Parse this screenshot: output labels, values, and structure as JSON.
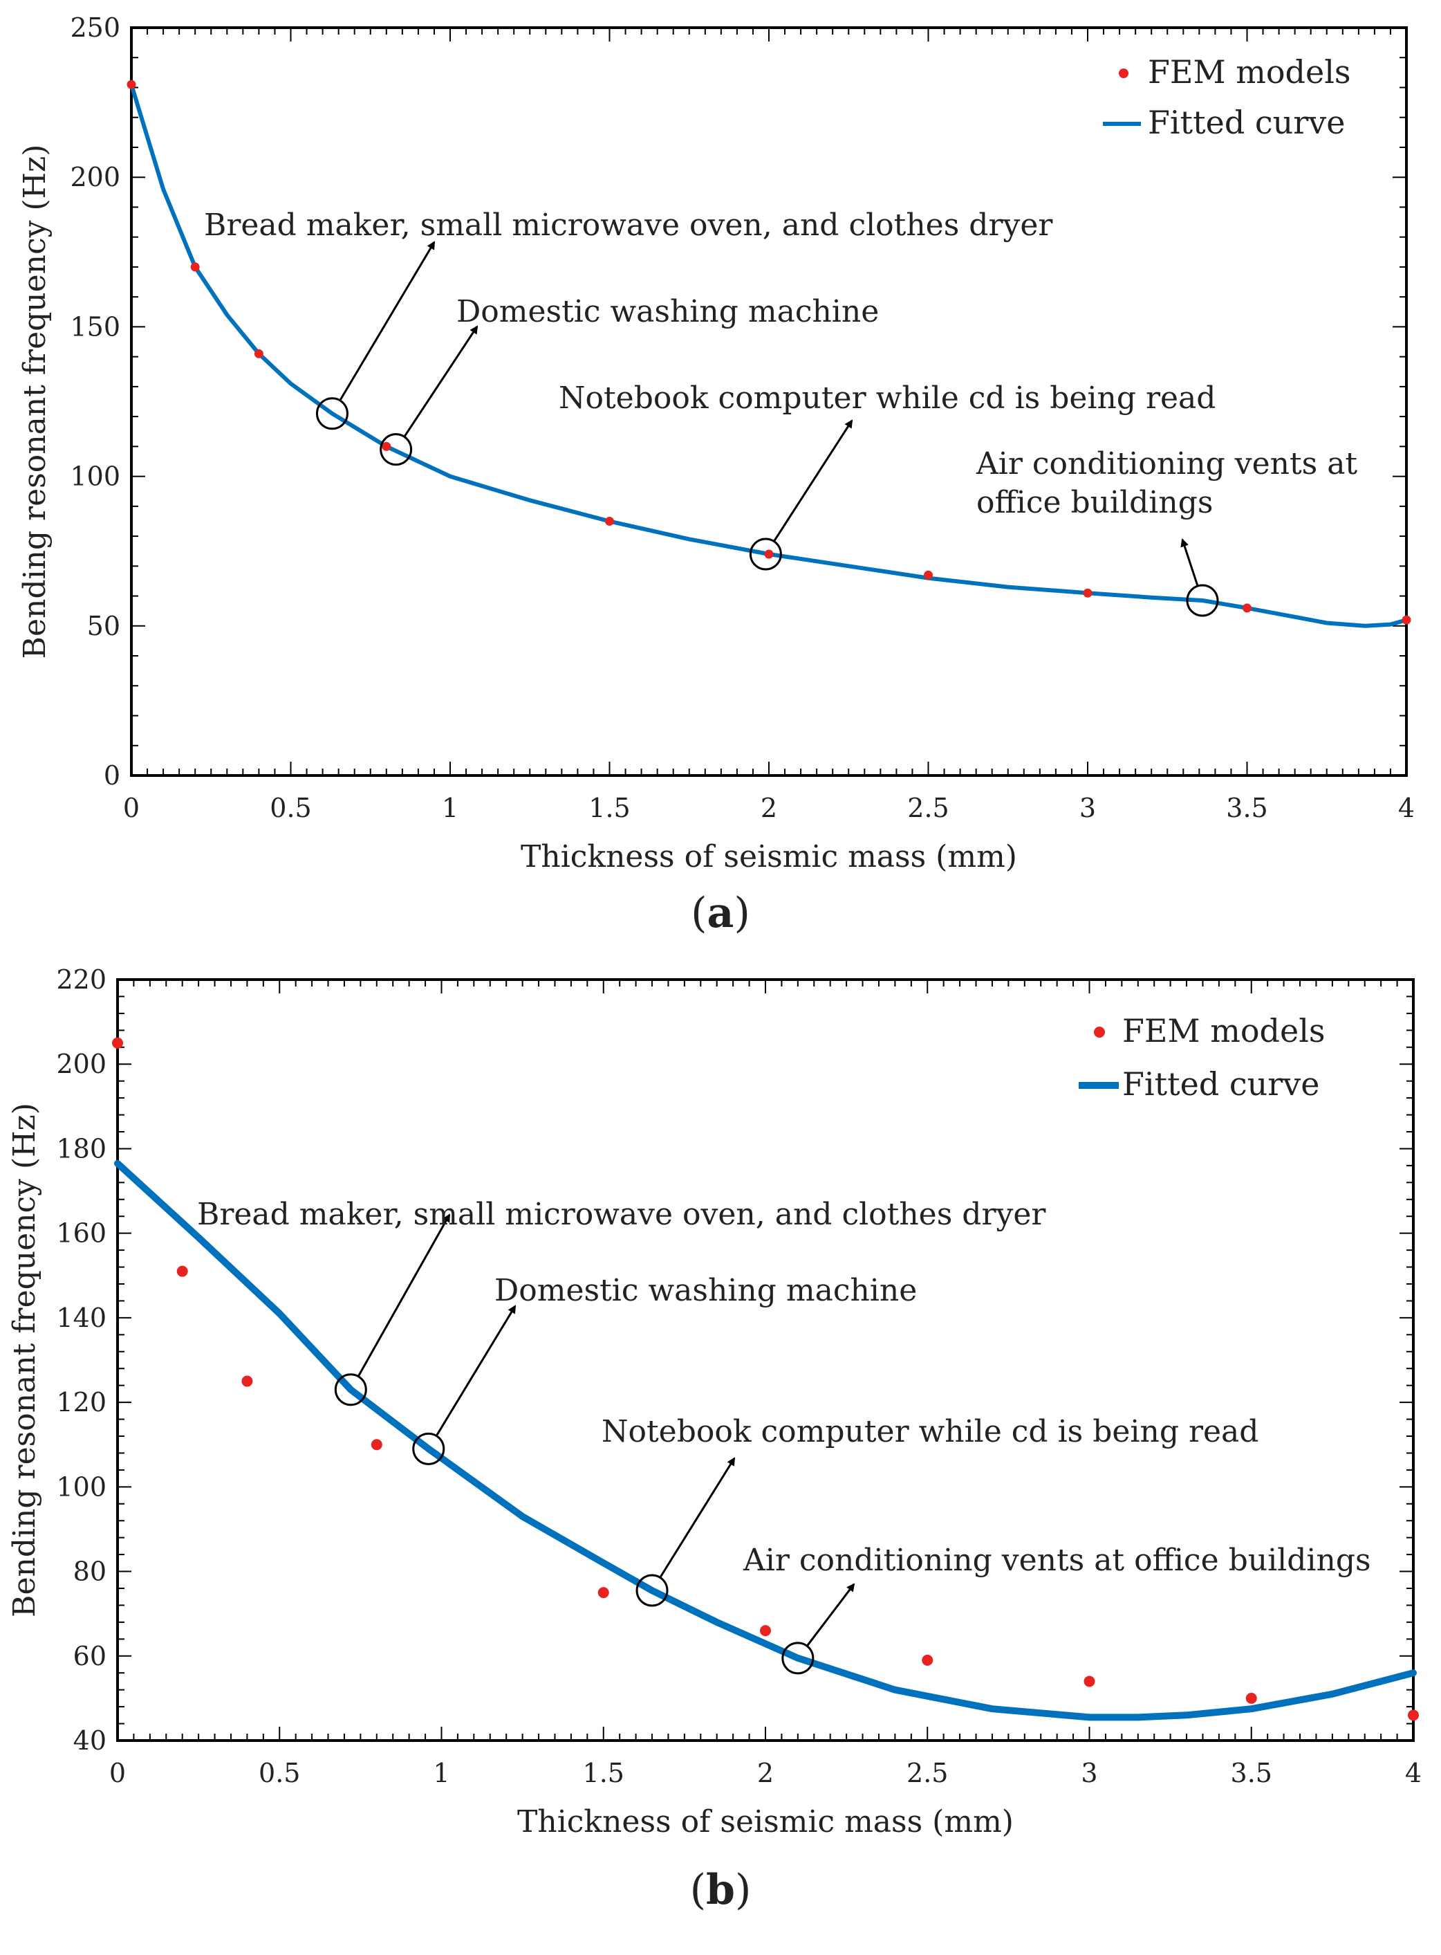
{
  "chart_data": [
    {
      "type": "line",
      "panel_label": "a",
      "xlabel": "Thickness of seismic mass (mm)",
      "ylabel": "Bending resonant frequency (Hz)",
      "xlim": [
        0,
        4
      ],
      "ylim": [
        0,
        250
      ],
      "x_ticks": [
        0,
        0.5,
        1,
        1.5,
        2,
        2.5,
        3,
        3.5,
        4
      ],
      "y_ticks": [
        0,
        50,
        100,
        150,
        200,
        250
      ],
      "legend": {
        "placement": "top-right",
        "entries": [
          "FEM models",
          "Fitted curve"
        ]
      },
      "series": [
        {
          "name": "FEM models",
          "style": "points",
          "color": "#e8231f",
          "x": [
            0,
            0.2,
            0.4,
            0.8,
            1.5,
            2,
            2.5,
            3,
            3.5,
            4
          ],
          "y": [
            231,
            170,
            141,
            110,
            85,
            74,
            67,
            61,
            56,
            52
          ]
        },
        {
          "name": "Fitted curve",
          "style": "line",
          "color": "#0072bd",
          "x": [
            0,
            0.1,
            0.2,
            0.3,
            0.4,
            0.5,
            0.63,
            0.8,
            1,
            1.25,
            1.5,
            1.75,
            2,
            2.25,
            2.5,
            2.75,
            3,
            3.2,
            3.36,
            3.5,
            3.65,
            3.75,
            3.87,
            3.95,
            4
          ],
          "y": [
            231,
            196,
            170,
            154,
            141,
            131,
            121,
            110,
            100,
            92,
            85,
            79,
            74,
            70,
            66,
            63,
            61,
            59.5,
            58.5,
            56,
            53,
            51,
            50,
            50.5,
            52
          ]
        }
      ],
      "annotations": [
        {
          "text": "Bread maker, small microwave oven, and clothes dryer",
          "x": 0.63,
          "y": 121
        },
        {
          "text": "Domestic washing machine",
          "x": 0.83,
          "y": 109
        },
        {
          "text": "Notebook computer while cd is being read",
          "x": 1.99,
          "y": 74
        },
        {
          "text": "Air conditioning vents at office buildings",
          "lines": [
            "Air conditioning vents at",
            "office buildings"
          ],
          "x": 3.36,
          "y": 58.5
        }
      ]
    },
    {
      "type": "line",
      "panel_label": "b",
      "xlabel": "Thickness of seismic mass (mm)",
      "ylabel": "Bending resonant frequency (Hz)",
      "xlim": [
        0,
        4
      ],
      "ylim": [
        40,
        220
      ],
      "x_ticks": [
        0,
        0.5,
        1,
        1.5,
        2,
        2.5,
        3,
        3.5,
        4
      ],
      "y_ticks": [
        40,
        60,
        80,
        100,
        120,
        140,
        160,
        180,
        200,
        220
      ],
      "legend": {
        "placement": "top-right",
        "entries": [
          "FEM models",
          "Fitted curve"
        ]
      },
      "series": [
        {
          "name": "FEM models",
          "style": "points",
          "color": "#e8231f",
          "x": [
            0,
            0.2,
            0.4,
            0.8,
            1.5,
            2,
            2.5,
            3,
            3.5,
            4
          ],
          "y": [
            205,
            151,
            125,
            110,
            75,
            66,
            59,
            54,
            50,
            46
          ]
        },
        {
          "name": "Fitted curve",
          "style": "line",
          "color": "#0072bd",
          "x": [
            0,
            0.25,
            0.5,
            0.72,
            0.96,
            1.25,
            1.5,
            1.65,
            1.85,
            2.1,
            2.4,
            2.7,
            3,
            3.15,
            3.3,
            3.5,
            3.75,
            4
          ],
          "y": [
            176.5,
            159,
            141,
            123,
            109,
            93,
            82,
            75.5,
            68,
            59.5,
            52,
            47.5,
            45.5,
            45.5,
            46,
            47.5,
            51,
            56
          ]
        }
      ],
      "annotations": [
        {
          "text": "Bread maker, small microwave oven, and clothes dryer",
          "x": 0.72,
          "y": 123
        },
        {
          "text": "Domestic washing machine",
          "x": 0.96,
          "y": 109
        },
        {
          "text": "Notebook computer while cd is being read",
          "x": 1.65,
          "y": 75.5
        },
        {
          "text": "Air conditioning vents at office buildings",
          "x": 2.1,
          "y": 59.5
        }
      ]
    }
  ]
}
